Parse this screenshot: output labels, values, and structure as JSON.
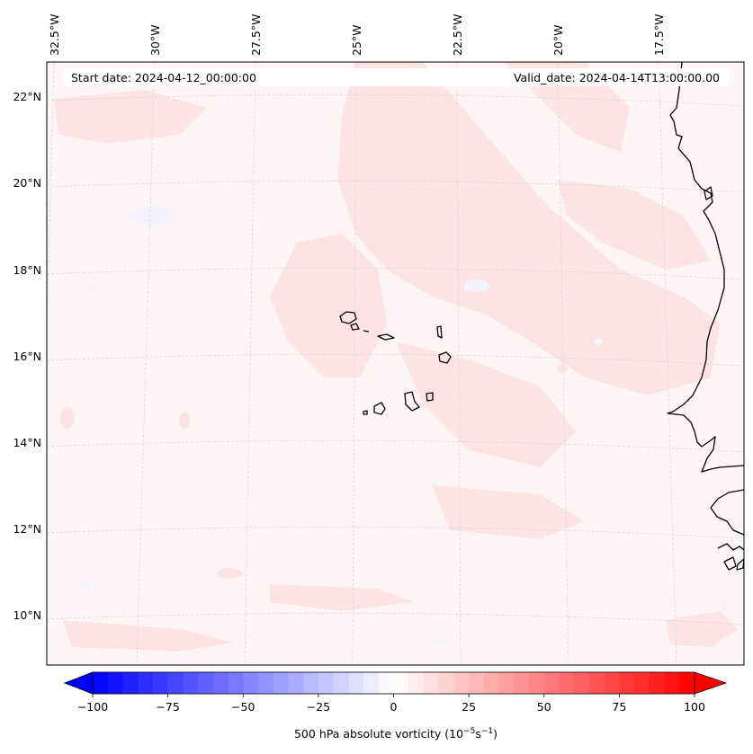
{
  "header": {
    "start_date": "Start date: 2024-04-12_00:00:00",
    "valid_date": "Valid_date: 2024-04-14T13:00:00.00"
  },
  "map": {
    "lon_labels": [
      "32.5°W",
      "30°W",
      "27.5°W",
      "25°W",
      "22.5°W",
      "20°W",
      "17.5°W"
    ],
    "lat_labels": [
      "22°N",
      "20°N",
      "18°N",
      "16°N",
      "14°N",
      "12°N",
      "10°N"
    ],
    "field_fill_color": "#fef6f6",
    "positive_patch_color": "#fde3e3",
    "negative_patch_color": "#f3f4ff",
    "coastline_color": "#000000",
    "gridline_color": "#d0d0d0"
  },
  "colorbar": {
    "label": "500 hPa absolute vorticity (10",
    "label_exp1": "−5",
    "label_mid": "s",
    "label_exp2": "−1",
    "label_end": ")",
    "ticks": [
      "−100",
      "−75",
      "−50",
      "−25",
      "0",
      "25",
      "50",
      "75",
      "100"
    ],
    "min": -100,
    "max": 100,
    "levels": 40,
    "min_color": "#0000ff",
    "mid_color": "#ffffff",
    "max_color": "#ff0000"
  }
}
